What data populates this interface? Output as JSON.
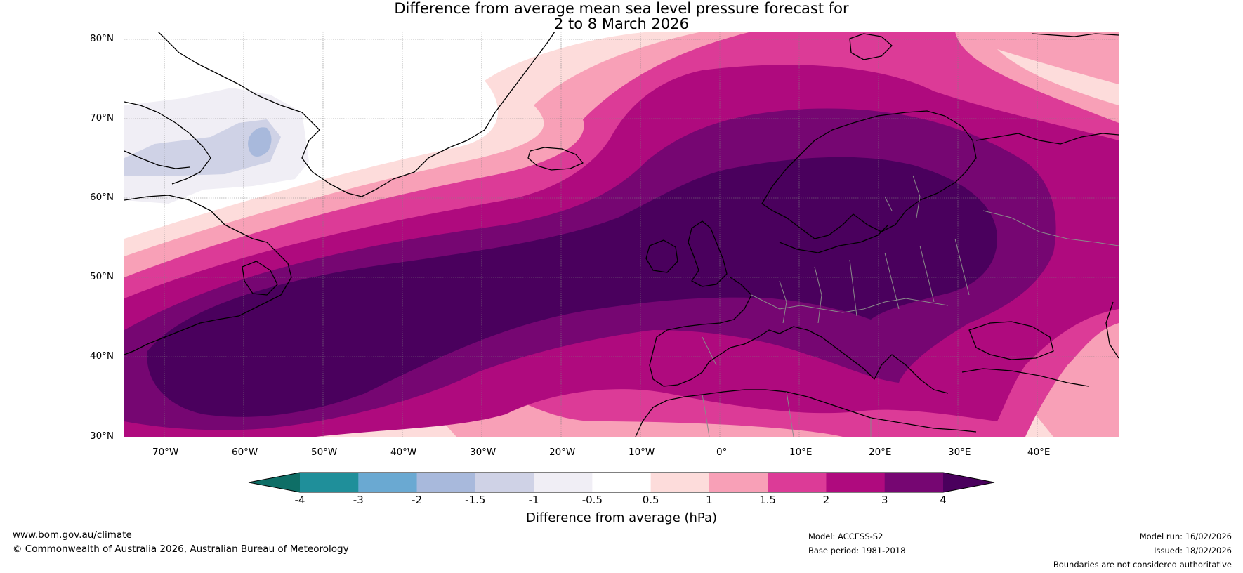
{
  "title_line1": "Difference from average mean sea level pressure forecast for",
  "title_line2": "2 to 8 March 2026",
  "lat_labels": [
    "80°N",
    "70°N",
    "60°N",
    "50°N",
    "40°N",
    "30°N"
  ],
  "lon_labels": [
    "70°W",
    "60°W",
    "50°W",
    "40°W",
    "30°W",
    "20°W",
    "10°W",
    "0°",
    "10°E",
    "20°E",
    "30°E",
    "40°E"
  ],
  "colorbar": {
    "title": "Difference from average (hPa)",
    "ticks": [
      "-4",
      "-3",
      "-2",
      "-1.5",
      "-1",
      "-0.5",
      "0.5",
      "1",
      "1.5",
      "2",
      "3",
      "4"
    ],
    "colors": {
      "below": "#0e6e66",
      "bins": [
        "#1f8f9a",
        "#6aa9d2",
        "#a8b9dc",
        "#cfd2e6",
        "#f0eef5",
        "#ffffff",
        "#fddcdb",
        "#f8a0b7",
        "#dc3b97",
        "#af0a7e",
        "#760672"
      ],
      "above": "#4a005d"
    }
  },
  "footer": {
    "website": "www.bom.gov.au/climate",
    "copyright": "© Commonwealth of Australia 2026, Australian Bureau of Meteorology",
    "model": "Model: ACCESS-S2",
    "base_period": "Base period: 1981-2018",
    "model_run": "Model run: 16/02/2026",
    "issued": "Issued: 18/02/2026",
    "disclaimer": "Boundaries are not considered authoritative"
  }
}
